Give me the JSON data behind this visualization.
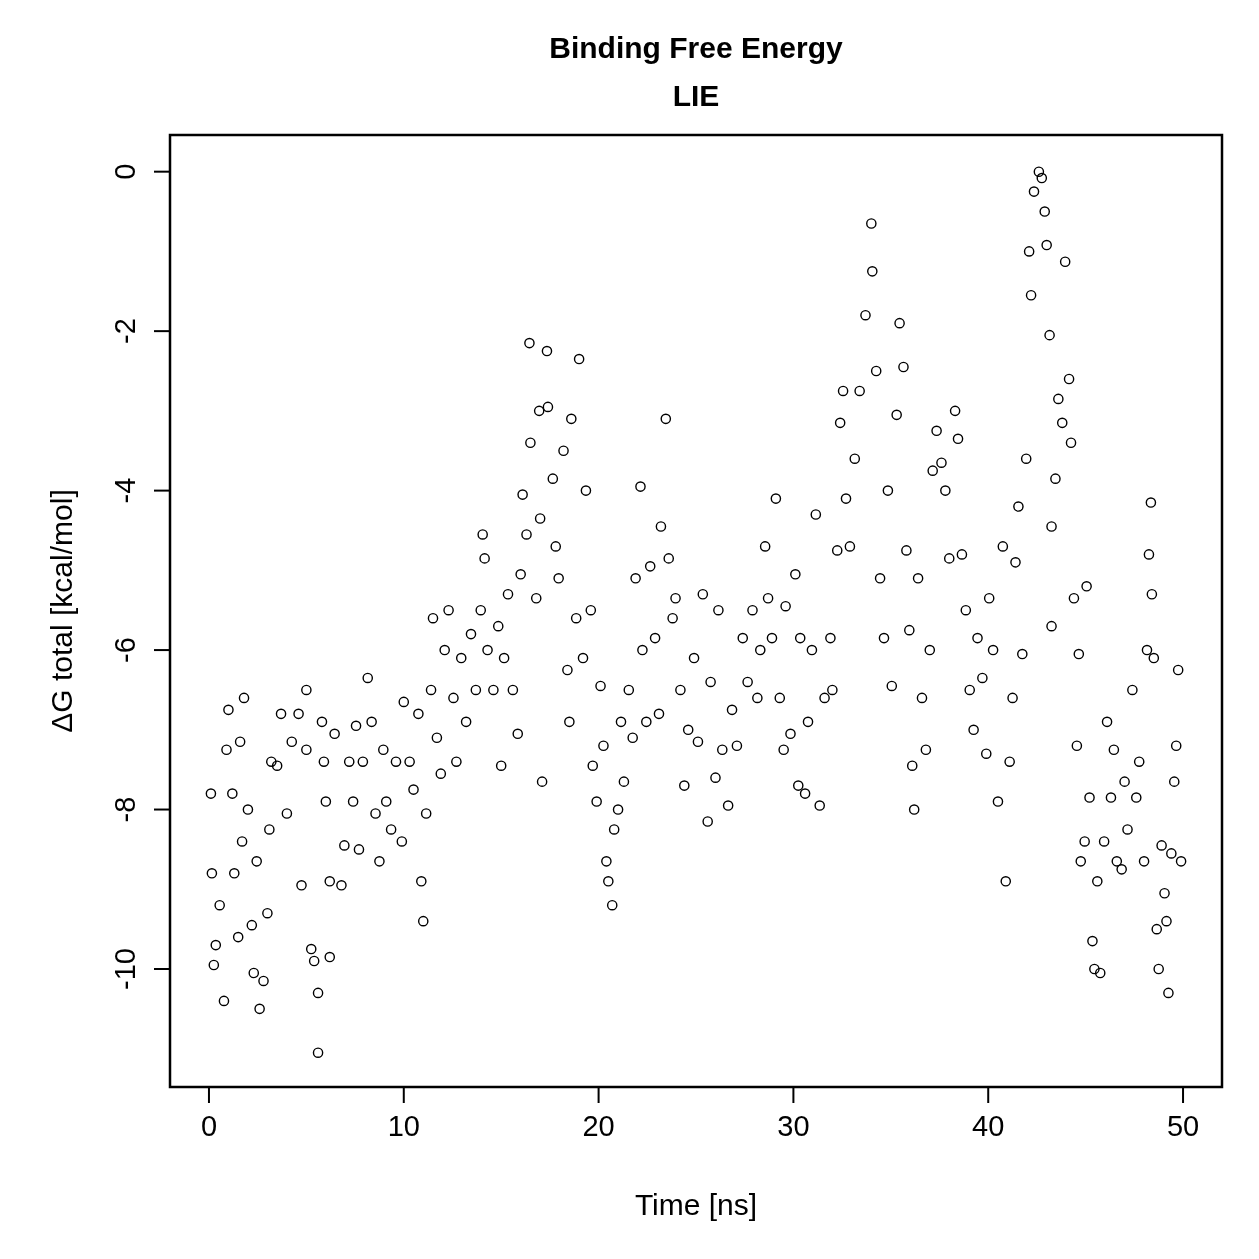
{
  "chart_data": {
    "type": "scatter",
    "title": "Binding Free Energy",
    "subtitle": "LIE",
    "xlabel": "Time [ns]",
    "ylabel": "ΔG total [kcal/mol]",
    "xlim": [
      -2,
      52
    ],
    "ylim": [
      -11.48,
      0.46
    ],
    "xticks": [
      0,
      10,
      20,
      30,
      40,
      50
    ],
    "yticks": [
      -10,
      -8,
      -6,
      -4,
      -2,
      0
    ],
    "grid": false,
    "marker": "circle",
    "series": [
      {
        "color": "#000000",
        "x": [
          0.1,
          0.15,
          0.25,
          0.35,
          0.55,
          0.77,
          1.0,
          0.9,
          1.2,
          1.3,
          1.5,
          1.6,
          1.8,
          1.7,
          2.0,
          2.2,
          2.3,
          2.6,
          2.8,
          2.45,
          3.0,
          3.1,
          3.2,
          3.5,
          3.7,
          4.0,
          4.25,
          4.6,
          4.75,
          5.0,
          5.0,
          5.25,
          5.4,
          5.6,
          5.6,
          5.8,
          5.9,
          6.0,
          6.2,
          6.2,
          6.45,
          6.8,
          6.95,
          7.2,
          7.4,
          7.55,
          7.7,
          7.9,
          8.15,
          8.35,
          8.55,
          8.75,
          8.95,
          9.1,
          9.35,
          9.6,
          9.9,
          10.0,
          10.3,
          10.5,
          10.75,
          10.9,
          11.0,
          11.15,
          11.4,
          11.5,
          11.7,
          11.9,
          12.1,
          12.3,
          12.55,
          12.7,
          12.95,
          13.2,
          13.45,
          13.7,
          13.95,
          14.05,
          14.15,
          14.3,
          14.6,
          14.85,
          15.0,
          15.15,
          15.35,
          15.6,
          15.85,
          16.0,
          16.1,
          16.3,
          16.45,
          16.5,
          16.8,
          16.95,
          17.0,
          17.1,
          17.35,
          17.4,
          17.65,
          17.8,
          17.95,
          18.2,
          18.4,
          18.5,
          18.6,
          18.85,
          19.0,
          19.2,
          19.35,
          19.6,
          19.7,
          19.9,
          20.1,
          20.25,
          20.4,
          20.5,
          20.7,
          20.8,
          21.0,
          21.15,
          21.3,
          21.55,
          21.75,
          21.9,
          22.15,
          22.25,
          22.45,
          22.65,
          22.9,
          23.1,
          23.2,
          23.45,
          23.6,
          23.8,
          23.95,
          24.2,
          24.4,
          24.6,
          24.9,
          25.1,
          25.35,
          25.6,
          25.75,
          26.0,
          26.15,
          26.35,
          26.65,
          26.85,
          27.1,
          27.4,
          27.65,
          27.9,
          28.15,
          28.3,
          28.55,
          28.7,
          28.9,
          29.1,
          29.3,
          29.5,
          29.6,
          29.85,
          30.1,
          30.25,
          30.35,
          30.6,
          30.75,
          30.95,
          31.15,
          31.35,
          31.6,
          31.9,
          32.0,
          32.25,
          32.4,
          32.55,
          32.7,
          32.9,
          33.15,
          33.4,
          33.7,
          34.0,
          34.05,
          34.25,
          34.45,
          34.65,
          34.85,
          35.05,
          35.3,
          35.45,
          35.65,
          35.8,
          35.95,
          36.1,
          36.2,
          36.4,
          36.6,
          36.8,
          37.0,
          37.15,
          37.35,
          37.6,
          37.8,
          38.0,
          38.3,
          38.45,
          38.65,
          38.85,
          39.05,
          39.25,
          39.45,
          39.7,
          39.9,
          40.05,
          40.25,
          40.5,
          40.75,
          40.9,
          41.1,
          41.25,
          41.4,
          41.55,
          41.75,
          41.95,
          42.1,
          42.2,
          42.35,
          42.6,
          42.75,
          42.9,
          43.0,
          43.15,
          43.25,
          43.25,
          43.45,
          43.6,
          43.8,
          43.95,
          44.15,
          44.25,
          44.4,
          44.55,
          44.65,
          44.75,
          44.95,
          45.05,
          45.2,
          45.35,
          45.45,
          45.6,
          45.75,
          45.95,
          46.1,
          46.3,
          46.45,
          46.6,
          46.85,
          47.0,
          47.15,
          47.4,
          47.6,
          47.75,
          48.0,
          48.15,
          48.25,
          48.35,
          48.4,
          48.5,
          48.65,
          48.75,
          48.9,
          49.05,
          49.15,
          49.25,
          49.4,
          49.55,
          49.65,
          49.75,
          49.9
        ],
        "values": [
          -7.8,
          -8.8,
          -9.95,
          -9.7,
          -9.2,
          -10.4,
          -6.75,
          -7.25,
          -7.8,
          -8.8,
          -9.6,
          -7.15,
          -6.6,
          -8.4,
          -8.0,
          -9.45,
          -10.05,
          -10.5,
          -10.15,
          -8.65,
          -9.3,
          -8.25,
          -7.4,
          -7.45,
          -6.8,
          -8.05,
          -7.15,
          -6.8,
          -8.95,
          -6.5,
          -7.25,
          -9.75,
          -9.9,
          -10.3,
          -11.05,
          -6.9,
          -7.4,
          -7.9,
          -8.9,
          -9.85,
          -7.05,
          -8.95,
          -8.45,
          -7.4,
          -7.9,
          -6.95,
          -8.5,
          -7.4,
          -6.35,
          -6.9,
          -8.05,
          -8.65,
          -7.25,
          -7.9,
          -8.25,
          -7.4,
          -8.4,
          -6.65,
          -7.4,
          -7.75,
          -6.8,
          -8.9,
          -9.4,
          -8.05,
          -6.5,
          -5.6,
          -7.1,
          -7.55,
          -6.0,
          -5.5,
          -6.6,
          -7.4,
          -6.1,
          -6.9,
          -5.8,
          -6.5,
          -5.5,
          -4.55,
          -4.85,
          -6.0,
          -6.5,
          -5.7,
          -7.45,
          -6.1,
          -5.3,
          -6.5,
          -7.05,
          -5.05,
          -4.05,
          -4.55,
          -2.15,
          -3.4,
          -5.35,
          -3.0,
          -4.35,
          -7.65,
          -2.25,
          -2.95,
          -3.85,
          -4.7,
          -5.1,
          -3.5,
          -6.25,
          -6.9,
          -3.1,
          -5.6,
          -2.35,
          -6.1,
          -4.0,
          -5.5,
          -7.45,
          -7.9,
          -6.45,
          -7.2,
          -8.65,
          -8.9,
          -9.2,
          -8.25,
          -8.0,
          -6.9,
          -7.65,
          -6.5,
          -7.1,
          -5.1,
          -3.95,
          -6.0,
          -6.9,
          -4.95,
          -5.85,
          -6.8,
          -4.45,
          -3.1,
          -4.85,
          -5.6,
          -5.35,
          -6.5,
          -7.7,
          -7.0,
          -6.1,
          -7.15,
          -5.3,
          -8.15,
          -6.4,
          -7.6,
          -5.5,
          -7.25,
          -7.95,
          -6.75,
          -7.2,
          -5.85,
          -6.4,
          -5.5,
          -6.6,
          -6.0,
          -4.7,
          -5.35,
          -5.85,
          -4.1,
          -6.6,
          -7.25,
          -5.45,
          -7.05,
          -5.05,
          -7.7,
          -5.85,
          -7.8,
          -6.9,
          -6.0,
          -4.3,
          -7.95,
          -6.6,
          -5.85,
          -6.5,
          -4.75,
          -3.15,
          -2.75,
          -4.1,
          -4.7,
          -3.6,
          -2.75,
          -1.8,
          -0.65,
          -1.25,
          -2.5,
          -5.1,
          -5.85,
          -4.0,
          -6.45,
          -3.05,
          -1.9,
          -2.45,
          -4.75,
          -5.75,
          -7.45,
          -8.0,
          -5.1,
          -6.6,
          -7.25,
          -6.0,
          -3.75,
          -3.25,
          -3.65,
          -4.0,
          -4.85,
          -3.0,
          -3.35,
          -4.8,
          -5.5,
          -6.5,
          -7.0,
          -5.85,
          -6.35,
          -7.3,
          -5.35,
          -6.0,
          -7.9,
          -4.7,
          -8.9,
          -7.4,
          -6.6,
          -4.9,
          -4.2,
          -6.05,
          -3.6,
          -1.0,
          -1.55,
          -0.25,
          0.0,
          -0.08,
          -0.5,
          -0.92,
          -2.05,
          -4.45,
          -5.7,
          -3.85,
          -2.85,
          -3.15,
          -1.13,
          -2.6,
          -3.4,
          -5.35,
          -7.2,
          -6.05,
          -8.65,
          -8.4,
          -5.2,
          -7.85,
          -9.65,
          -10.0,
          -8.9,
          -10.05,
          -8.4,
          -6.9,
          -7.85,
          -7.25,
          -8.65,
          -8.75,
          -7.65,
          -8.25,
          -6.5,
          -7.85,
          -7.4,
          -8.65,
          -6.0,
          -4.8,
          -4.15,
          -5.3,
          -6.1,
          -9.5,
          -10.0,
          -8.45,
          -9.05,
          -9.4,
          -10.3,
          -8.55,
          -7.65,
          -7.2,
          -6.25,
          -8.65
        ]
      }
    ]
  }
}
